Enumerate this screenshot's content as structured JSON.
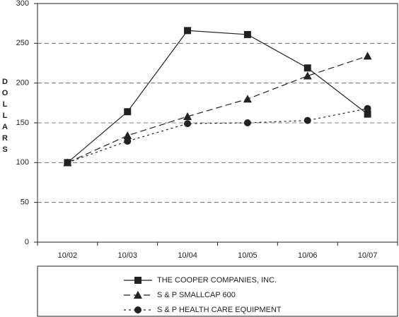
{
  "chart_data": {
    "type": "line",
    "y_label": "DOLLARS",
    "categories": [
      "10/02",
      "10/03",
      "10/04",
      "10/05",
      "10/06",
      "10/07"
    ],
    "series": [
      {
        "name": "THE COOPER COMPANIES, INC.",
        "color": "#222222",
        "dash": "solid",
        "marker": "square",
        "values": [
          100,
          164,
          266,
          261,
          219,
          161
        ]
      },
      {
        "name": "S & P SMALLCAP 600",
        "color": "#222222",
        "dash": "dashed",
        "marker": "triangle",
        "values": [
          100,
          134,
          158,
          180,
          209,
          234
        ]
      },
      {
        "name": "S & P HEALTH CARE EQUIPMENT",
        "color": "#222222",
        "dash": "dotted",
        "marker": "circle",
        "values": [
          100,
          127,
          149,
          150,
          153,
          168
        ]
      }
    ],
    "ylim": [
      0,
      300
    ],
    "yticks": [
      0,
      50,
      100,
      150,
      200,
      250,
      300
    ],
    "grid": true
  }
}
